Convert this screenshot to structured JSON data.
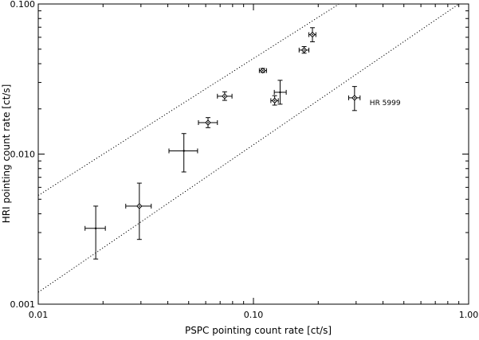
{
  "chart_data": {
    "type": "scatter",
    "title": "",
    "xlabel": "PSPC pointing count rate [ct/s]",
    "ylabel": "HRI pointing count rate [ct/s]",
    "xscale": "log",
    "yscale": "log",
    "xlim": [
      0.01,
      1.0
    ],
    "ylim": [
      0.001,
      0.1
    ],
    "x_ticks": [
      {
        "value": 0.01,
        "label": "0.01"
      },
      {
        "value": 0.1,
        "label": "0.10"
      },
      {
        "value": 1.0,
        "label": "1.00"
      }
    ],
    "y_ticks": [
      {
        "value": 0.001,
        "label": "0.001"
      },
      {
        "value": 0.01,
        "label": "0.010"
      },
      {
        "value": 0.1,
        "label": "0.100"
      }
    ],
    "grid": false,
    "points": [
      {
        "x": 0.0185,
        "y": 0.0032,
        "xerr": [
          0.0165,
          0.0205
        ],
        "yerr": [
          0.002,
          0.0045
        ],
        "marker": false
      },
      {
        "x": 0.0295,
        "y": 0.0045,
        "xerr": [
          0.0255,
          0.0335
        ],
        "yerr": [
          0.0027,
          0.0064
        ],
        "marker": true
      },
      {
        "x": 0.0475,
        "y": 0.0105,
        "xerr": [
          0.0405,
          0.055
        ],
        "yerr": [
          0.0076,
          0.0137
        ],
        "marker": false
      },
      {
        "x": 0.0615,
        "y": 0.0162,
        "xerr": [
          0.0555,
          0.068
        ],
        "yerr": [
          0.015,
          0.0175
        ],
        "marker": true
      },
      {
        "x": 0.0735,
        "y": 0.0243,
        "xerr": [
          0.068,
          0.0795
        ],
        "yerr": [
          0.0228,
          0.026
        ],
        "marker": true
      },
      {
        "x": 0.1105,
        "y": 0.036,
        "xerr": [
          0.1065,
          0.115
        ],
        "yerr": [
          0.035,
          0.0372
        ],
        "marker": true
      },
      {
        "x": 0.1255,
        "y": 0.0227,
        "xerr": [
          0.1205,
          0.1305
        ],
        "yerr": [
          0.0212,
          0.0245
        ],
        "marker": true
      },
      {
        "x": 0.133,
        "y": 0.0258,
        "xerr": [
          0.125,
          0.142
        ],
        "yerr": [
          0.0215,
          0.031
        ],
        "marker": false
      },
      {
        "x": 0.172,
        "y": 0.0493,
        "xerr": [
          0.163,
          0.181
        ],
        "yerr": [
          0.047,
          0.052
        ],
        "marker": true
      },
      {
        "x": 0.188,
        "y": 0.0625,
        "xerr": [
          0.181,
          0.195
        ],
        "yerr": [
          0.056,
          0.0695
        ],
        "marker": true
      },
      {
        "x": 0.295,
        "y": 0.0237,
        "xerr": [
          0.277,
          0.313
        ],
        "yerr": [
          0.0195,
          0.0282
        ],
        "marker": true,
        "label": "HR 5999"
      }
    ],
    "reference_lines": [
      {
        "style": "dotted",
        "from": [
          0.01,
          0.0053
        ],
        "to": [
          0.25,
          0.1
        ]
      },
      {
        "style": "dotted",
        "from": [
          0.01,
          0.0012
        ],
        "to": [
          0.9,
          0.1
        ]
      }
    ]
  }
}
